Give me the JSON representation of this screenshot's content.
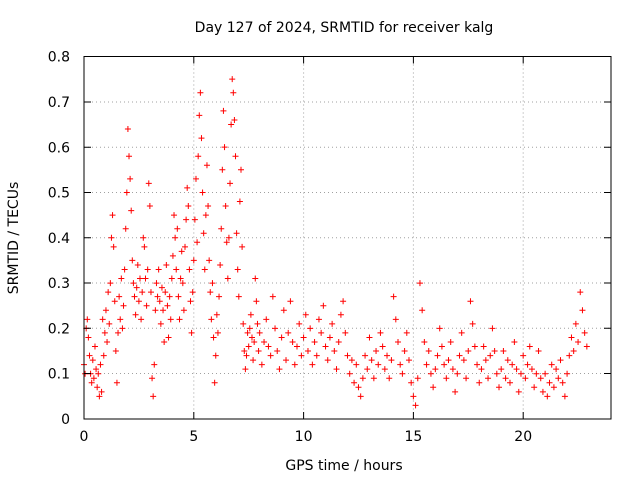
{
  "chart_data": {
    "type": "scatter",
    "title": "Day 127 of 2024, SRMTID for receiver kalg",
    "xlabel": "GPS time / hours",
    "ylabel": "SRMTID / TECUs",
    "xlim": [
      0,
      24
    ],
    "ylim": [
      0,
      0.8
    ],
    "xticks": [
      0,
      5,
      10,
      15,
      20
    ],
    "yticks": [
      0,
      0.1,
      0.2,
      0.3,
      0.4,
      0.5,
      0.6,
      0.7,
      0.8
    ],
    "xtick_labels": [
      "0",
      "5",
      "10",
      "15",
      "20"
    ],
    "ytick_labels": [
      "0",
      "0.1",
      "0.2",
      "0.3",
      "0.4",
      "0.5",
      "0.6",
      "0.7",
      "0.8"
    ],
    "grid": true,
    "marker": "+",
    "marker_color": "#ff0000",
    "series": [
      {
        "name": "SRMTID",
        "points": [
          [
            0.0,
            0.12
          ],
          [
            0.05,
            0.1
          ],
          [
            0.1,
            0.2
          ],
          [
            0.15,
            0.22
          ],
          [
            0.2,
            0.18
          ],
          [
            0.25,
            0.14
          ],
          [
            0.3,
            0.1
          ],
          [
            0.35,
            0.08
          ],
          [
            0.4,
            0.13
          ],
          [
            0.45,
            0.09
          ],
          [
            0.5,
            0.16
          ],
          [
            0.55,
            0.11
          ],
          [
            0.6,
            0.07
          ],
          [
            0.65,
            0.1
          ],
          [
            0.7,
            0.05
          ],
          [
            0.75,
            0.12
          ],
          [
            0.8,
            0.06
          ],
          [
            0.85,
            0.22
          ],
          [
            0.9,
            0.14
          ],
          [
            0.95,
            0.19
          ],
          [
            1.0,
            0.24
          ],
          [
            1.05,
            0.17
          ],
          [
            1.1,
            0.28
          ],
          [
            1.15,
            0.21
          ],
          [
            1.2,
            0.3
          ],
          [
            1.25,
            0.4
          ],
          [
            1.3,
            0.45
          ],
          [
            1.35,
            0.38
          ],
          [
            1.4,
            0.26
          ],
          [
            1.45,
            0.15
          ],
          [
            1.5,
            0.08
          ],
          [
            1.55,
            0.19
          ],
          [
            1.6,
            0.27
          ],
          [
            1.65,
            0.22
          ],
          [
            1.7,
            0.31
          ],
          [
            1.75,
            0.2
          ],
          [
            1.8,
            0.25
          ],
          [
            1.85,
            0.33
          ],
          [
            1.9,
            0.42
          ],
          [
            1.95,
            0.5
          ],
          [
            2.0,
            0.64
          ],
          [
            2.05,
            0.58
          ],
          [
            2.1,
            0.53
          ],
          [
            2.15,
            0.46
          ],
          [
            2.2,
            0.35
          ],
          [
            2.25,
            0.3
          ],
          [
            2.3,
            0.27
          ],
          [
            2.35,
            0.23
          ],
          [
            2.4,
            0.29
          ],
          [
            2.45,
            0.34
          ],
          [
            2.5,
            0.26
          ],
          [
            2.55,
            0.31
          ],
          [
            2.6,
            0.22
          ],
          [
            2.65,
            0.28
          ],
          [
            2.7,
            0.4
          ],
          [
            2.75,
            0.38
          ],
          [
            2.8,
            0.31
          ],
          [
            2.85,
            0.25
          ],
          [
            2.9,
            0.33
          ],
          [
            2.95,
            0.52
          ],
          [
            3.0,
            0.47
          ],
          [
            3.05,
            0.28
          ],
          [
            3.1,
            0.09
          ],
          [
            3.15,
            0.05
          ],
          [
            3.2,
            0.12
          ],
          [
            3.25,
            0.24
          ],
          [
            3.3,
            0.3
          ],
          [
            3.35,
            0.27
          ],
          [
            3.4,
            0.33
          ],
          [
            3.45,
            0.26
          ],
          [
            3.5,
            0.21
          ],
          [
            3.55,
            0.29
          ],
          [
            3.6,
            0.24
          ],
          [
            3.65,
            0.17
          ],
          [
            3.7,
            0.28
          ],
          [
            3.75,
            0.34
          ],
          [
            3.8,
            0.25
          ],
          [
            3.85,
            0.18
          ],
          [
            3.9,
            0.27
          ],
          [
            3.95,
            0.22
          ],
          [
            4.0,
            0.31
          ],
          [
            4.05,
            0.36
          ],
          [
            4.1,
            0.45
          ],
          [
            4.15,
            0.4
          ],
          [
            4.2,
            0.33
          ],
          [
            4.25,
            0.42
          ],
          [
            4.3,
            0.27
          ],
          [
            4.35,
            0.22
          ],
          [
            4.4,
            0.31
          ],
          [
            4.45,
            0.37
          ],
          [
            4.5,
            0.3
          ],
          [
            4.55,
            0.24
          ],
          [
            4.6,
            0.38
          ],
          [
            4.65,
            0.44
          ],
          [
            4.7,
            0.51
          ],
          [
            4.75,
            0.47
          ],
          [
            4.8,
            0.33
          ],
          [
            4.85,
            0.26
          ],
          [
            4.9,
            0.19
          ],
          [
            4.95,
            0.28
          ],
          [
            5.0,
            0.35
          ],
          [
            5.05,
            0.44
          ],
          [
            5.1,
            0.53
          ],
          [
            5.15,
            0.39
          ],
          [
            5.2,
            0.58
          ],
          [
            5.25,
            0.67
          ],
          [
            5.3,
            0.72
          ],
          [
            5.35,
            0.62
          ],
          [
            5.4,
            0.5
          ],
          [
            5.45,
            0.41
          ],
          [
            5.5,
            0.33
          ],
          [
            5.55,
            0.45
          ],
          [
            5.6,
            0.56
          ],
          [
            5.65,
            0.47
          ],
          [
            5.7,
            0.35
          ],
          [
            5.75,
            0.28
          ],
          [
            5.8,
            0.22
          ],
          [
            5.85,
            0.3
          ],
          [
            5.9,
            0.18
          ],
          [
            5.95,
            0.08
          ],
          [
            6.0,
            0.14
          ],
          [
            6.05,
            0.23
          ],
          [
            6.1,
            0.19
          ],
          [
            6.15,
            0.27
          ],
          [
            6.2,
            0.34
          ],
          [
            6.25,
            0.42
          ],
          [
            6.3,
            0.55
          ],
          [
            6.35,
            0.68
          ],
          [
            6.4,
            0.6
          ],
          [
            6.45,
            0.47
          ],
          [
            6.5,
            0.39
          ],
          [
            6.55,
            0.31
          ],
          [
            6.6,
            0.4
          ],
          [
            6.65,
            0.52
          ],
          [
            6.7,
            0.65
          ],
          [
            6.75,
            0.75
          ],
          [
            6.8,
            0.72
          ],
          [
            6.85,
            0.66
          ],
          [
            6.9,
            0.58
          ],
          [
            6.95,
            0.41
          ],
          [
            7.0,
            0.33
          ],
          [
            7.05,
            0.27
          ],
          [
            7.1,
            0.48
          ],
          [
            7.15,
            0.55
          ],
          [
            7.2,
            0.38
          ],
          [
            7.25,
            0.21
          ],
          [
            7.3,
            0.15
          ],
          [
            7.35,
            0.11
          ],
          [
            7.4,
            0.14
          ],
          [
            7.45,
            0.19
          ],
          [
            7.5,
            0.16
          ],
          [
            7.55,
            0.2
          ],
          [
            7.6,
            0.23
          ],
          [
            7.65,
            0.18
          ],
          [
            7.7,
            0.13
          ],
          [
            7.75,
            0.17
          ],
          [
            7.8,
            0.31
          ],
          [
            7.85,
            0.26
          ],
          [
            7.9,
            0.21
          ],
          [
            7.95,
            0.15
          ],
          [
            8.0,
            0.19
          ],
          [
            8.1,
            0.12
          ],
          [
            8.2,
            0.17
          ],
          [
            8.3,
            0.22
          ],
          [
            8.4,
            0.16
          ],
          [
            8.5,
            0.14
          ],
          [
            8.6,
            0.27
          ],
          [
            8.7,
            0.2
          ],
          [
            8.8,
            0.15
          ],
          [
            8.9,
            0.11
          ],
          [
            9.0,
            0.18
          ],
          [
            9.1,
            0.24
          ],
          [
            9.2,
            0.13
          ],
          [
            9.3,
            0.19
          ],
          [
            9.4,
            0.26
          ],
          [
            9.5,
            0.17
          ],
          [
            9.6,
            0.12
          ],
          [
            9.7,
            0.16
          ],
          [
            9.8,
            0.21
          ],
          [
            9.9,
            0.14
          ],
          [
            10.0,
            0.18
          ],
          [
            10.1,
            0.23
          ],
          [
            10.2,
            0.15
          ],
          [
            10.3,
            0.2
          ],
          [
            10.4,
            0.12
          ],
          [
            10.5,
            0.17
          ],
          [
            10.6,
            0.14
          ],
          [
            10.7,
            0.22
          ],
          [
            10.8,
            0.19
          ],
          [
            10.9,
            0.25
          ],
          [
            11.0,
            0.16
          ],
          [
            11.1,
            0.13
          ],
          [
            11.2,
            0.18
          ],
          [
            11.3,
            0.21
          ],
          [
            11.4,
            0.15
          ],
          [
            11.5,
            0.11
          ],
          [
            11.6,
            0.17
          ],
          [
            11.7,
            0.23
          ],
          [
            11.8,
            0.26
          ],
          [
            11.9,
            0.19
          ],
          [
            12.0,
            0.14
          ],
          [
            12.1,
            0.1
          ],
          [
            12.2,
            0.13
          ],
          [
            12.3,
            0.08
          ],
          [
            12.4,
            0.12
          ],
          [
            12.5,
            0.07
          ],
          [
            12.6,
            0.05
          ],
          [
            12.7,
            0.09
          ],
          [
            12.8,
            0.14
          ],
          [
            12.9,
            0.11
          ],
          [
            13.0,
            0.18
          ],
          [
            13.1,
            0.13
          ],
          [
            13.2,
            0.09
          ],
          [
            13.3,
            0.15
          ],
          [
            13.4,
            0.12
          ],
          [
            13.5,
            0.19
          ],
          [
            13.6,
            0.16
          ],
          [
            13.7,
            0.11
          ],
          [
            13.8,
            0.14
          ],
          [
            13.9,
            0.09
          ],
          [
            14.0,
            0.13
          ],
          [
            14.1,
            0.27
          ],
          [
            14.2,
            0.22
          ],
          [
            14.3,
            0.17
          ],
          [
            14.4,
            0.12
          ],
          [
            14.5,
            0.1
          ],
          [
            14.6,
            0.15
          ],
          [
            14.7,
            0.19
          ],
          [
            14.8,
            0.13
          ],
          [
            14.9,
            0.08
          ],
          [
            15.0,
            0.05
          ],
          [
            15.1,
            0.03
          ],
          [
            15.2,
            0.09
          ],
          [
            15.3,
            0.3
          ],
          [
            15.4,
            0.24
          ],
          [
            15.5,
            0.17
          ],
          [
            15.6,
            0.12
          ],
          [
            15.7,
            0.15
          ],
          [
            15.8,
            0.1
          ],
          [
            15.9,
            0.07
          ],
          [
            16.0,
            0.11
          ],
          [
            16.1,
            0.14
          ],
          [
            16.2,
            0.2
          ],
          [
            16.3,
            0.16
          ],
          [
            16.4,
            0.12
          ],
          [
            16.5,
            0.09
          ],
          [
            16.6,
            0.13
          ],
          [
            16.7,
            0.17
          ],
          [
            16.8,
            0.11
          ],
          [
            16.9,
            0.06
          ],
          [
            17.0,
            0.1
          ],
          [
            17.1,
            0.14
          ],
          [
            17.2,
            0.19
          ],
          [
            17.3,
            0.13
          ],
          [
            17.4,
            0.09
          ],
          [
            17.5,
            0.15
          ],
          [
            17.6,
            0.26
          ],
          [
            17.7,
            0.21
          ],
          [
            17.8,
            0.16
          ],
          [
            17.9,
            0.12
          ],
          [
            18.0,
            0.08
          ],
          [
            18.1,
            0.11
          ],
          [
            18.2,
            0.16
          ],
          [
            18.3,
            0.13
          ],
          [
            18.4,
            0.09
          ],
          [
            18.5,
            0.14
          ],
          [
            18.6,
            0.2
          ],
          [
            18.7,
            0.15
          ],
          [
            18.8,
            0.1
          ],
          [
            18.9,
            0.07
          ],
          [
            19.0,
            0.11
          ],
          [
            19.1,
            0.15
          ],
          [
            19.2,
            0.09
          ],
          [
            19.3,
            0.13
          ],
          [
            19.4,
            0.08
          ],
          [
            19.5,
            0.12
          ],
          [
            19.6,
            0.17
          ],
          [
            19.7,
            0.11
          ],
          [
            19.8,
            0.06
          ],
          [
            19.9,
            0.1
          ],
          [
            20.0,
            0.14
          ],
          [
            20.1,
            0.09
          ],
          [
            20.2,
            0.12
          ],
          [
            20.3,
            0.16
          ],
          [
            20.4,
            0.11
          ],
          [
            20.5,
            0.07
          ],
          [
            20.6,
            0.1
          ],
          [
            20.7,
            0.15
          ],
          [
            20.8,
            0.09
          ],
          [
            20.9,
            0.06
          ],
          [
            21.0,
            0.1
          ],
          [
            21.1,
            0.05
          ],
          [
            21.2,
            0.08
          ],
          [
            21.3,
            0.12
          ],
          [
            21.4,
            0.07
          ],
          [
            21.5,
            0.11
          ],
          [
            21.6,
            0.09
          ],
          [
            21.7,
            0.13
          ],
          [
            21.8,
            0.08
          ],
          [
            21.9,
            0.05
          ],
          [
            22.0,
            0.1
          ],
          [
            22.1,
            0.14
          ],
          [
            22.2,
            0.18
          ],
          [
            22.3,
            0.15
          ],
          [
            22.4,
            0.21
          ],
          [
            22.5,
            0.17
          ],
          [
            22.6,
            0.28
          ],
          [
            22.7,
            0.24
          ],
          [
            22.8,
            0.19
          ],
          [
            22.9,
            0.16
          ]
        ]
      }
    ]
  }
}
